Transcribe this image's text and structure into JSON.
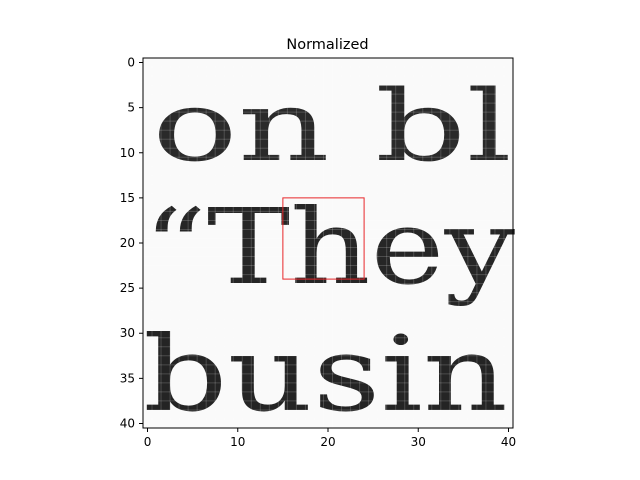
{
  "chart_data": {
    "type": "heatmap",
    "title": "Normalized",
    "colormap": "gray",
    "image_size": [
      41,
      41
    ],
    "xlim": [
      -0.5,
      40.5
    ],
    "ylim": [
      40.5,
      -0.5
    ],
    "xticks": [
      0,
      10,
      20,
      30,
      40
    ],
    "xtick_labels": [
      "0",
      "10",
      "20",
      "30",
      "40"
    ],
    "yticks": [
      0,
      5,
      10,
      15,
      20,
      25,
      30,
      35,
      40
    ],
    "ytick_labels": [
      "0",
      "5",
      "10",
      "15",
      "20",
      "25",
      "30",
      "35",
      "40"
    ],
    "text_lines": [
      {
        "text": "on  bl",
        "row_range": [
          4,
          12
        ]
      },
      {
        "text": "“They",
        "row_range": [
          15,
          27
        ]
      },
      {
        "text": "busin",
        "row_range": [
          29,
          40
        ]
      }
    ],
    "highlight_rectangle": {
      "x": [
        15,
        24
      ],
      "y": [
        15,
        24
      ],
      "color": "#e8262a"
    }
  }
}
